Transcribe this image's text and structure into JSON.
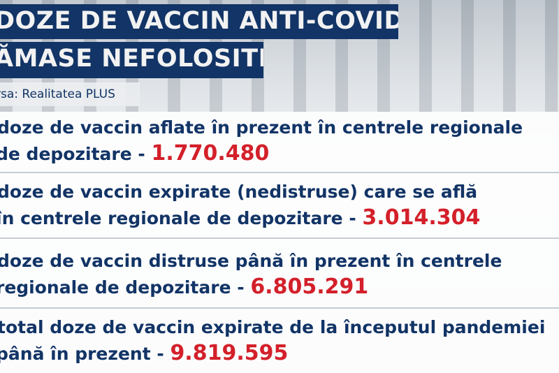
{
  "title": {
    "line1": "DOZE DE VACCIN ANTI-COVID",
    "line2": "ĂMASE NEFOLOSITE"
  },
  "source": "rsa: Realitatea PLUS",
  "items": [
    {
      "line1": "doze de vaccin aflate în prezent în centrele regionale",
      "line2": "de depozitare - ",
      "value": "1.770.480"
    },
    {
      "line1": "doze de vaccin expirate (nedistruse) care se află",
      "line2": "în centrele regionale de depozitare - ",
      "value": "3.014.304"
    },
    {
      "line1": "doze de vaccin distruse până în prezent în centrele",
      "line2": "regionale de depozitare - ",
      "value": "6.805.291"
    },
    {
      "line1": "total doze de vaccin expirate de la începutul pandemiei",
      "line2": "până în prezent - ",
      "value": "9.819.595"
    }
  ],
  "colors": {
    "title_bg": "#123466",
    "text": "#123466",
    "value": "#d3202a"
  }
}
